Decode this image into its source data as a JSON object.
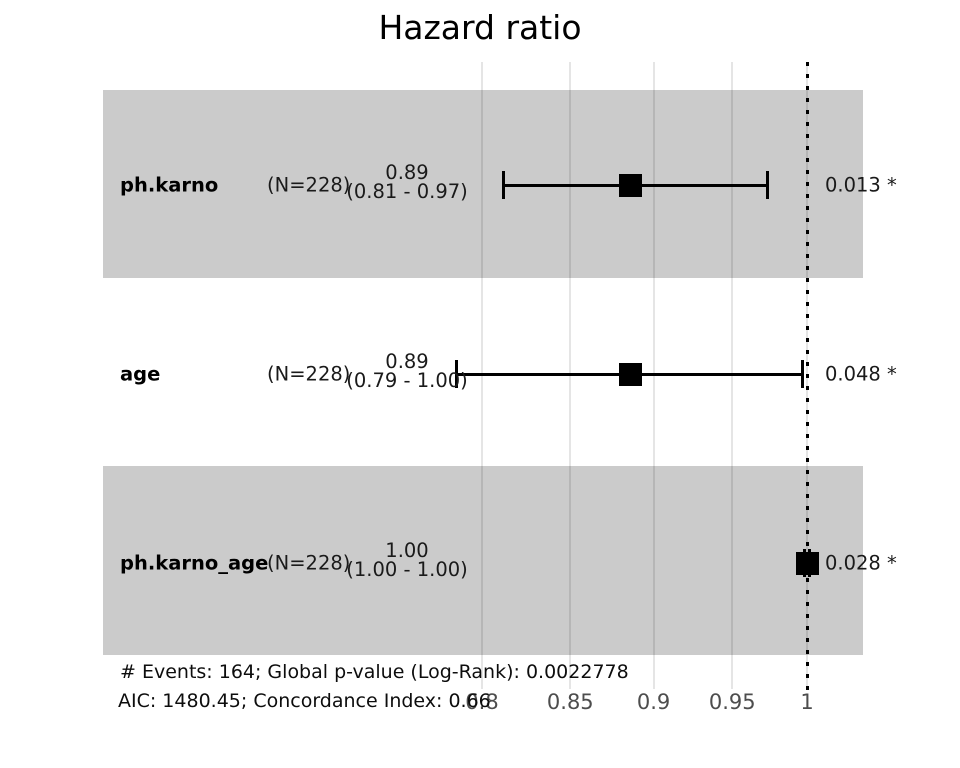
{
  "chart_data": {
    "type": "forest",
    "title": "Hazard ratio",
    "x_scale": "log",
    "x_ticks": [
      0.8,
      0.85,
      0.9,
      0.95,
      1
    ],
    "x_tick_labels": [
      "0.8",
      "0.85",
      "0.9",
      "0.95",
      "1"
    ],
    "reference_line": 1,
    "rows": [
      {
        "label": "ph.karno",
        "n_label": "(N=228)",
        "estimate_label": "0.89",
        "ci_label": "(0.81 - 0.97)",
        "hr": 0.886,
        "ci_low": 0.812,
        "ci_high": 0.973,
        "p_label": "0.013 *",
        "shaded": true
      },
      {
        "label": "age",
        "n_label": "(N=228)",
        "estimate_label": "0.89",
        "ci_label": "(0.79 - 1.00)",
        "hr": 0.886,
        "ci_low": 0.786,
        "ci_high": 0.997,
        "p_label": "0.048 *",
        "shaded": false
      },
      {
        "label": "ph.karno_age",
        "n_label": "(N=228)",
        "estimate_label": "1.00",
        "ci_label": "(1.00 - 1.00)",
        "hr": 1.0,
        "ci_low": 0.9985,
        "ci_high": 1.0015,
        "p_label": "0.028 *",
        "shaded": true
      }
    ],
    "footer_line1": "# Events: 164; Global p-value (Log-Rank): 0.0022778",
    "footer_line2": "AIC: 1480.45; Concordance Index: 0.66"
  }
}
